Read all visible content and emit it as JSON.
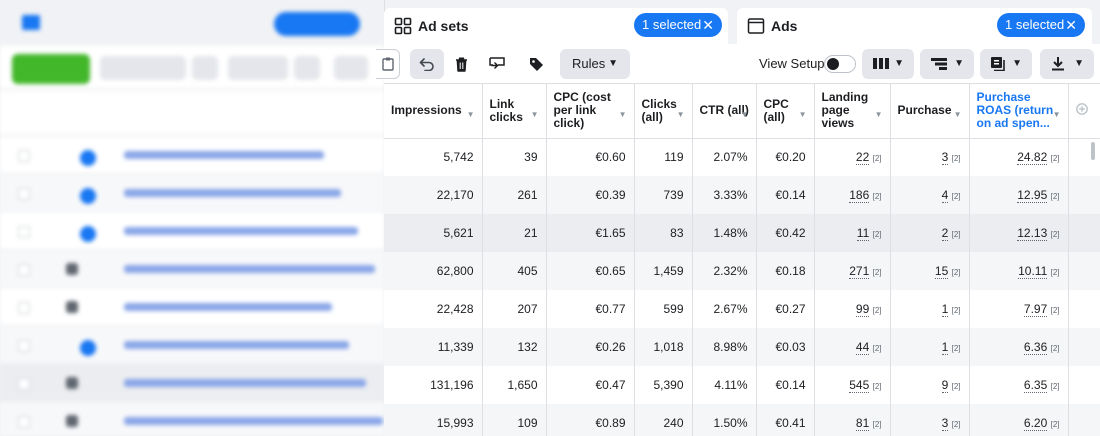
{
  "adsets_tab": {
    "label": "Ad sets",
    "selected": "1 selected",
    "icon": "grid-icon"
  },
  "ads_tab": {
    "label": "Ads",
    "selected": "1 selected",
    "icon": "window-icon"
  },
  "toolbar": {
    "rules_label": "Rules",
    "view_setup_label": "View Setup",
    "view_setup_on": false
  },
  "columns": [
    {
      "label": "Impressions",
      "highlight": false
    },
    {
      "label": "Link clicks",
      "highlight": false
    },
    {
      "label": "CPC (cost per link click)",
      "highlight": false
    },
    {
      "label": "Clicks (all)",
      "highlight": false
    },
    {
      "label": "CTR (all)",
      "highlight": false
    },
    {
      "label": "CPC (all)",
      "highlight": false
    },
    {
      "label": "Landing page views",
      "highlight": false
    },
    {
      "label": "Purchase",
      "highlight": false
    },
    {
      "label": "Purchase ROAS (return on ad spen...",
      "highlight": true
    }
  ],
  "ref_marker": "[2]",
  "rows": [
    {
      "impressions": "5,742",
      "link_clicks": "39",
      "cpc_link": "€0.60",
      "clicks_all": "119",
      "ctr_all": "2.07%",
      "cpc_all": "€0.20",
      "lpv": "22",
      "purchase": "3",
      "roas": "24.82"
    },
    {
      "impressions": "22,170",
      "link_clicks": "261",
      "cpc_link": "€0.39",
      "clicks_all": "739",
      "ctr_all": "3.33%",
      "cpc_all": "€0.14",
      "lpv": "186",
      "purchase": "4",
      "roas": "12.95"
    },
    {
      "impressions": "5,621",
      "link_clicks": "21",
      "cpc_link": "€1.65",
      "clicks_all": "83",
      "ctr_all": "1.48%",
      "cpc_all": "€0.42",
      "lpv": "11",
      "purchase": "2",
      "roas": "12.13"
    },
    {
      "impressions": "62,800",
      "link_clicks": "405",
      "cpc_link": "€0.65",
      "clicks_all": "1,459",
      "ctr_all": "2.32%",
      "cpc_all": "€0.18",
      "lpv": "271",
      "purchase": "15",
      "roas": "10.11"
    },
    {
      "impressions": "22,428",
      "link_clicks": "207",
      "cpc_link": "€0.77",
      "clicks_all": "599",
      "ctr_all": "2.67%",
      "cpc_all": "€0.27",
      "lpv": "99",
      "purchase": "1",
      "roas": "7.97"
    },
    {
      "impressions": "11,339",
      "link_clicks": "132",
      "cpc_link": "€0.26",
      "clicks_all": "1,018",
      "ctr_all": "8.98%",
      "cpc_all": "€0.03",
      "lpv": "44",
      "purchase": "1",
      "roas": "6.36"
    },
    {
      "impressions": "131,196",
      "link_clicks": "1,650",
      "cpc_link": "€0.47",
      "clicks_all": "5,390",
      "ctr_all": "4.11%",
      "cpc_all": "€0.14",
      "lpv": "545",
      "purchase": "9",
      "roas": "6.35"
    },
    {
      "impressions": "15,993",
      "link_clicks": "109",
      "cpc_link": "€0.89",
      "clicks_all": "240",
      "ctr_all": "1.50%",
      "cpc_all": "€0.41",
      "lpv": "81",
      "purchase": "3",
      "roas": "6.20"
    }
  ],
  "colors": {
    "accent": "#1877f2",
    "create_green": "#42b72a"
  }
}
